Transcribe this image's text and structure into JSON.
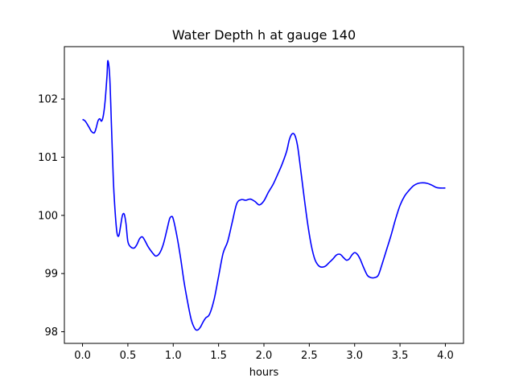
{
  "chart_data": {
    "type": "line",
    "title": "Water Depth h at gauge 140",
    "xlabel": "hours",
    "ylabel": "",
    "xlim": [
      -0.2,
      4.2
    ],
    "ylim": [
      97.8,
      102.9
    ],
    "grid": false,
    "x_ticks": [
      0.0,
      0.5,
      1.0,
      1.5,
      2.0,
      2.5,
      3.0,
      3.5,
      4.0
    ],
    "x_tick_labels": [
      "0.0",
      "0.5",
      "1.0",
      "1.5",
      "2.0",
      "2.5",
      "3.0",
      "3.5",
      "4.0"
    ],
    "y_ticks": [
      98,
      99,
      100,
      101,
      102
    ],
    "y_tick_labels": [
      "98",
      "99",
      "100",
      "101",
      "102"
    ],
    "series": [
      {
        "color": "#0000ff",
        "x": [
          0.0,
          0.03,
          0.07,
          0.1,
          0.13,
          0.15,
          0.17,
          0.19,
          0.21,
          0.23,
          0.25,
          0.27,
          0.28,
          0.3,
          0.32,
          0.34,
          0.36,
          0.38,
          0.4,
          0.42,
          0.44,
          0.46,
          0.48,
          0.5,
          0.53,
          0.57,
          0.6,
          0.63,
          0.66,
          0.69,
          0.72,
          0.75,
          0.78,
          0.81,
          0.85,
          0.89,
          0.93,
          0.96,
          0.98,
          1.0,
          1.04,
          1.08,
          1.12,
          1.16,
          1.2,
          1.24,
          1.27,
          1.3,
          1.33,
          1.36,
          1.4,
          1.45,
          1.5,
          1.55,
          1.6,
          1.65,
          1.7,
          1.75,
          1.8,
          1.85,
          1.9,
          1.95,
          2.0,
          2.05,
          2.1,
          2.15,
          2.2,
          2.25,
          2.28,
          2.31,
          2.34,
          2.37,
          2.4,
          2.44,
          2.48,
          2.52,
          2.56,
          2.6,
          2.64,
          2.68,
          2.72,
          2.76,
          2.8,
          2.84,
          2.88,
          2.91,
          2.94,
          2.97,
          3.0,
          3.03,
          3.06,
          3.1,
          3.14,
          3.18,
          3.22,
          3.26,
          3.3,
          3.35,
          3.4,
          3.45,
          3.5,
          3.55,
          3.6,
          3.65,
          3.7,
          3.75,
          3.8,
          3.85,
          3.9,
          3.95,
          4.0
        ],
        "y": [
          101.65,
          101.62,
          101.52,
          101.44,
          101.42,
          101.5,
          101.62,
          101.66,
          101.62,
          101.72,
          101.98,
          102.4,
          102.66,
          102.38,
          101.5,
          100.6,
          100.05,
          99.7,
          99.65,
          99.82,
          100.0,
          100.02,
          99.85,
          99.55,
          99.46,
          99.44,
          99.5,
          99.6,
          99.63,
          99.56,
          99.47,
          99.4,
          99.34,
          99.3,
          99.35,
          99.5,
          99.75,
          99.94,
          99.98,
          99.94,
          99.65,
          99.28,
          98.85,
          98.5,
          98.2,
          98.05,
          98.03,
          98.08,
          98.17,
          98.24,
          98.3,
          98.55,
          98.95,
          99.35,
          99.55,
          99.88,
          100.2,
          100.27,
          100.26,
          100.28,
          100.24,
          100.18,
          100.25,
          100.4,
          100.53,
          100.7,
          100.88,
          101.1,
          101.3,
          101.4,
          101.38,
          101.2,
          100.85,
          100.35,
          99.88,
          99.5,
          99.25,
          99.14,
          99.11,
          99.13,
          99.19,
          99.25,
          99.32,
          99.33,
          99.27,
          99.23,
          99.25,
          99.32,
          99.36,
          99.33,
          99.25,
          99.1,
          98.97,
          98.93,
          98.93,
          98.97,
          99.15,
          99.4,
          99.65,
          99.93,
          100.17,
          100.33,
          100.43,
          100.51,
          100.55,
          100.56,
          100.55,
          100.52,
          100.48,
          100.47,
          100.47
        ]
      }
    ]
  }
}
